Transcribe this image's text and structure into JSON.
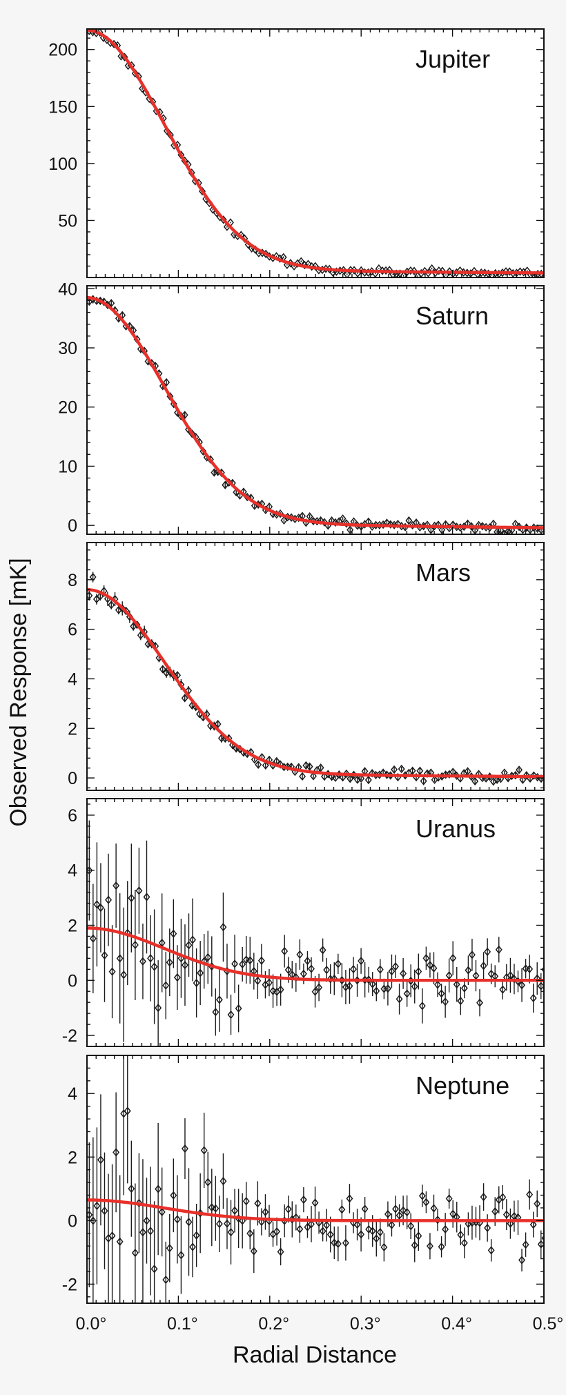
{
  "chart_data": {
    "type": "scatter",
    "xlabel": "Radial Distance",
    "ylabel": "Observed Response [mK]",
    "xlim": [
      0.0,
      0.5
    ],
    "x_ticks": [
      0.0,
      0.1,
      0.2,
      0.3,
      0.4,
      0.5
    ],
    "x_tick_labels": [
      "0.0°",
      "0.1°",
      "0.2°",
      "0.3°",
      "0.4°",
      "0.5°"
    ],
    "marker": "diamond",
    "fit_color": "#e8302a",
    "point_color": "#1a1a1a",
    "background": "#f6f6f6",
    "panels": [
      {
        "title": "Jupiter",
        "ylim": [
          0,
          218
        ],
        "y_ticks": [
          50,
          100,
          150,
          200
        ],
        "y_tick_labels": [
          "50",
          "100",
          "150",
          "200"
        ],
        "fit": {
          "amplitude": 210,
          "sigma": 0.085,
          "baseline_start": 7,
          "baseline_end": 4
        },
        "points": {
          "count": 130,
          "noise": 1.6,
          "error_start": 1.2,
          "error_end": 0.6,
          "seed": 11
        }
      },
      {
        "title": "Saturn",
        "ylim": [
          -1.5,
          40.5
        ],
        "y_ticks": [
          0,
          10,
          20,
          30,
          40
        ],
        "y_tick_labels": [
          "0",
          "10",
          "20",
          "30",
          "40"
        ],
        "fit": {
          "amplitude": 38,
          "sigma": 0.085,
          "baseline_start": 0.5,
          "baseline_end": -0.4
        },
        "points": {
          "count": 125,
          "noise": 0.45,
          "error_start": 0.6,
          "error_end": 0.35,
          "seed": 23
        }
      },
      {
        "title": "Mars",
        "ylim": [
          -0.5,
          9.5
        ],
        "y_ticks": [
          0,
          2,
          4,
          6,
          8
        ],
        "y_tick_labels": [
          "0",
          "2",
          "4",
          "6",
          "8"
        ],
        "fit": {
          "amplitude": 7.4,
          "sigma": 0.085,
          "baseline_start": 0.2,
          "baseline_end": 0.05
        },
        "points": {
          "count": 125,
          "noise": 0.13,
          "error_start": 0.25,
          "error_end": 0.1,
          "seed": 37
        }
      },
      {
        "title": "Uranus",
        "ylim": [
          -2.4,
          6.6
        ],
        "y_ticks": [
          -2,
          0,
          2,
          4,
          6
        ],
        "y_tick_labels": [
          "-2",
          "0",
          "2",
          "4",
          "6"
        ],
        "fit": {
          "amplitude": 1.9,
          "sigma": 0.085,
          "baseline_start": 0.0,
          "baseline_end": 0.0
        },
        "points": {
          "count": 120,
          "noise": 0.55,
          "error_start": 2.4,
          "error_end": 0.5,
          "seed": 53
        }
      },
      {
        "title": "Neptune",
        "ylim": [
          -2.6,
          5.2
        ],
        "y_ticks": [
          -2,
          0,
          2,
          4
        ],
        "y_tick_labels": [
          "-2",
          "0",
          "2",
          "4"
        ],
        "fit": {
          "amplitude": 0.65,
          "sigma": 0.085,
          "baseline_start": 0.0,
          "baseline_end": 0.0
        },
        "points": {
          "count": 120,
          "noise": 0.5,
          "error_start": 2.4,
          "error_end": 0.45,
          "seed": 71
        }
      }
    ]
  }
}
